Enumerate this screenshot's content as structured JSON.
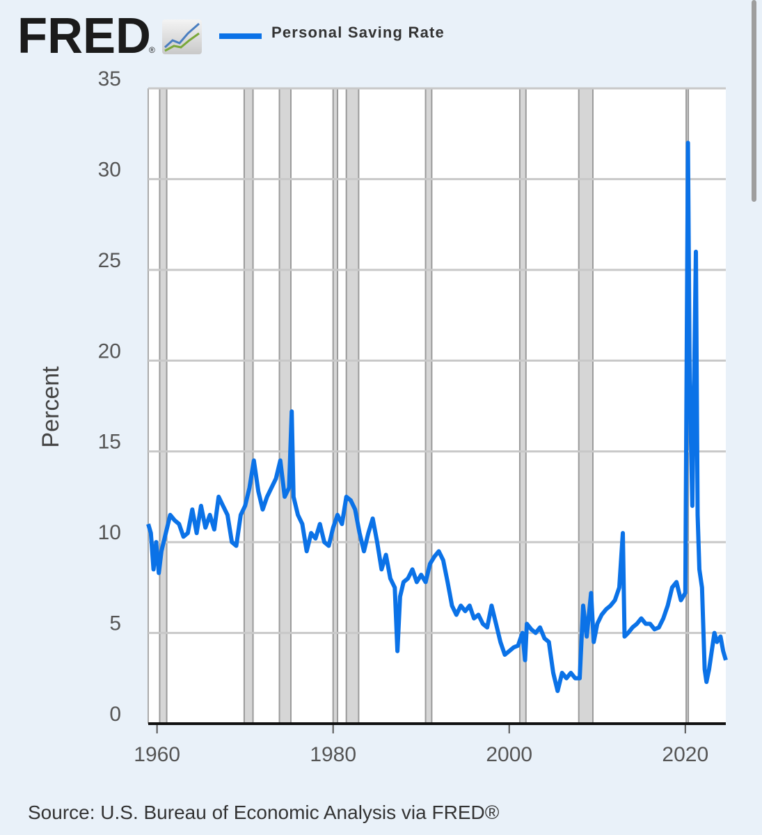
{
  "logo": "FRED",
  "logo_mark": "®",
  "chart_data": {
    "type": "line",
    "y_label": "Percent",
    "source": "Source: U.S. Bureau of Economic Analysis via FRED®",
    "x": [
      1959.0,
      1959.3,
      1959.6,
      1959.9,
      1960.2,
      1960.5,
      1961.0,
      1961.5,
      1962.0,
      1962.5,
      1963.0,
      1963.5,
      1964.0,
      1964.5,
      1965.0,
      1965.5,
      1966.0,
      1966.5,
      1967.0,
      1967.5,
      1968.0,
      1968.5,
      1969.0,
      1969.5,
      1970.0,
      1970.5,
      1971.0,
      1971.5,
      1972.0,
      1972.5,
      1973.0,
      1973.5,
      1974.0,
      1974.5,
      1975.0,
      1975.3,
      1975.5,
      1976.0,
      1976.5,
      1977.0,
      1977.5,
      1978.0,
      1978.5,
      1979.0,
      1979.5,
      1980.0,
      1980.5,
      1981.0,
      1981.5,
      1982.0,
      1982.5,
      1983.0,
      1983.5,
      1984.0,
      1984.5,
      1985.0,
      1985.5,
      1986.0,
      1986.5,
      1987.0,
      1987.3,
      1987.6,
      1988.0,
      1988.5,
      1989.0,
      1989.5,
      1990.0,
      1990.5,
      1991.0,
      1991.5,
      1992.0,
      1992.5,
      1993.0,
      1993.5,
      1994.0,
      1994.5,
      1995.0,
      1995.5,
      1996.0,
      1996.5,
      1997.0,
      1997.5,
      1998.0,
      1998.5,
      1999.0,
      1999.5,
      2000.0,
      2000.5,
      2001.0,
      2001.5,
      2001.8,
      2002.0,
      2002.5,
      2003.0,
      2003.5,
      2004.0,
      2004.5,
      2005.0,
      2005.5,
      2006.0,
      2006.5,
      2007.0,
      2007.5,
      2008.0,
      2008.4,
      2008.8,
      2009.3,
      2009.6,
      2010.0,
      2010.5,
      2011.0,
      2011.5,
      2012.0,
      2012.5,
      2012.9,
      2013.1,
      2013.5,
      2014.0,
      2014.5,
      2015.0,
      2015.5,
      2016.0,
      2016.5,
      2017.0,
      2017.5,
      2018.0,
      2018.5,
      2019.0,
      2019.5,
      2020.0,
      2020.3,
      2020.5,
      2020.8,
      2021.0,
      2021.2,
      2021.4,
      2021.6,
      2021.9,
      2022.2,
      2022.4,
      2022.7,
      2023.0,
      2023.3,
      2023.6,
      2024.0,
      2024.3,
      2024.6
    ],
    "series": [
      {
        "name": "Personal Saving Rate",
        "color": "#0b72e7",
        "values": [
          11.0,
          10.5,
          8.5,
          10.0,
          8.3,
          9.5,
          10.5,
          11.5,
          11.2,
          11.0,
          10.3,
          10.5,
          11.8,
          10.5,
          12.0,
          10.8,
          11.5,
          10.7,
          12.5,
          12.0,
          11.5,
          10.0,
          9.8,
          11.5,
          12.0,
          13.0,
          14.5,
          12.8,
          11.8,
          12.5,
          13.0,
          13.5,
          14.5,
          12.5,
          13.0,
          17.2,
          12.5,
          11.5,
          11.0,
          9.5,
          10.5,
          10.2,
          11.0,
          10.0,
          9.8,
          10.8,
          11.5,
          11.0,
          12.5,
          12.3,
          11.8,
          10.5,
          9.5,
          10.5,
          11.3,
          10.0,
          8.5,
          9.3,
          8.0,
          7.5,
          4.0,
          7.0,
          7.8,
          8.0,
          8.5,
          7.8,
          8.2,
          7.8,
          8.8,
          9.2,
          9.5,
          9.0,
          7.8,
          6.5,
          6.0,
          6.5,
          6.2,
          6.5,
          5.8,
          6.0,
          5.5,
          5.3,
          6.5,
          5.5,
          4.5,
          3.8,
          4.0,
          4.2,
          4.3,
          5.0,
          3.5,
          5.5,
          5.2,
          5.0,
          5.3,
          4.7,
          4.5,
          2.8,
          1.8,
          2.8,
          2.5,
          2.8,
          2.5,
          2.5,
          6.5,
          4.8,
          7.2,
          4.5,
          5.5,
          6.0,
          6.3,
          6.5,
          6.8,
          7.5,
          10.5,
          4.8,
          5.0,
          5.3,
          5.5,
          5.8,
          5.5,
          5.5,
          5.2,
          5.3,
          5.8,
          6.5,
          7.5,
          7.8,
          6.8,
          7.2,
          32.0,
          19.0,
          12.0,
          19.0,
          26.0,
          11.5,
          8.5,
          7.5,
          3.0,
          2.3,
          3.0,
          4.0,
          5.0,
          4.5,
          4.8,
          4.0,
          3.5
        ]
      }
    ],
    "xlim": [
      1959.0,
      2024.6
    ],
    "ylim": [
      0,
      35
    ],
    "xticks": [
      1960,
      1980,
      2000,
      2020
    ],
    "yticks": [
      0,
      5,
      10,
      15,
      20,
      25,
      30,
      35
    ],
    "grid": true,
    "recessions": [
      [
        1960.3,
        1961.1
      ],
      [
        1969.9,
        1970.9
      ],
      [
        1973.9,
        1975.2
      ],
      [
        1980.0,
        1980.5
      ],
      [
        1981.5,
        1982.9
      ],
      [
        1990.5,
        1991.2
      ],
      [
        2001.2,
        2001.9
      ],
      [
        2007.9,
        2009.5
      ],
      [
        2020.1,
        2020.3
      ]
    ]
  }
}
